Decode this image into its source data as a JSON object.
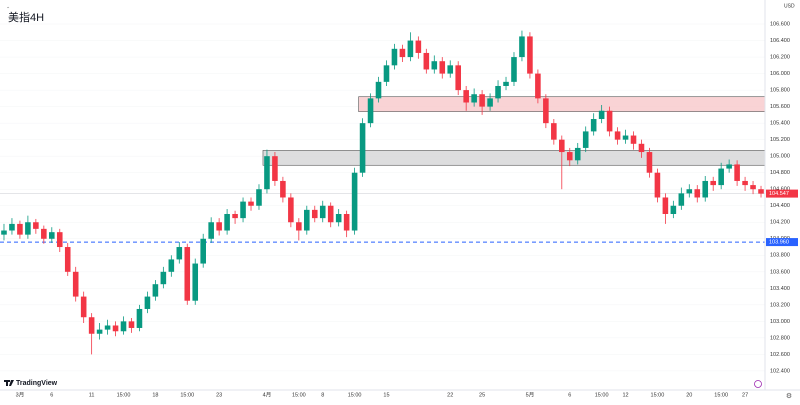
{
  "chart_data": {
    "type": "candlestick",
    "title": "美指4H",
    "currency": "USD",
    "brand": "TradingView",
    "up_color": "#089981",
    "down_color": "#f23645",
    "ylim": [
      102.29,
      106.77
    ],
    "yticks": [
      {
        "value": 102.4,
        "label": "102.400"
      },
      {
        "value": 102.6,
        "label": "102.600"
      },
      {
        "value": 102.8,
        "label": "102.800"
      },
      {
        "value": 103.0,
        "label": "103.000"
      },
      {
        "value": 103.2,
        "label": "103.200"
      },
      {
        "value": 103.4,
        "label": "103.400"
      },
      {
        "value": 103.6,
        "label": "103.600"
      },
      {
        "value": 103.8,
        "label": "103.800"
      },
      {
        "value": 104.0,
        "label": "104.000"
      },
      {
        "value": 104.2,
        "label": "104.200"
      },
      {
        "value": 104.4,
        "label": "104.400"
      },
      {
        "value": 104.6,
        "label": "104.600"
      },
      {
        "value": 104.8,
        "label": "104.800"
      },
      {
        "value": 105.0,
        "label": "105.000"
      },
      {
        "value": 105.2,
        "label": "105.200"
      },
      {
        "value": 105.4,
        "label": "105.400"
      },
      {
        "value": 105.6,
        "label": "105.600"
      },
      {
        "value": 105.8,
        "label": "105.800"
      },
      {
        "value": 106.0,
        "label": "106.000"
      },
      {
        "value": 106.2,
        "label": "106.200"
      },
      {
        "value": 106.4,
        "label": "106.400"
      },
      {
        "value": 106.6,
        "label": "106.600"
      }
    ],
    "categories": [
      null,
      null,
      "3月",
      null,
      null,
      null,
      "6",
      null,
      null,
      null,
      null,
      "11",
      null,
      null,
      null,
      "15:00",
      null,
      null,
      null,
      "18",
      null,
      null,
      null,
      "15:00",
      null,
      null,
      null,
      "23",
      null,
      null,
      null,
      null,
      null,
      "4月",
      null,
      null,
      null,
      "15:00",
      null,
      null,
      "8",
      null,
      null,
      null,
      "15:00",
      null,
      null,
      null,
      "15",
      null,
      null,
      null,
      null,
      null,
      null,
      null,
      "22",
      null,
      null,
      null,
      "25",
      null,
      null,
      null,
      null,
      null,
      "5月",
      null,
      null,
      null,
      null,
      "6",
      null,
      null,
      null,
      "15:00",
      null,
      null,
      "12",
      null,
      null,
      null,
      "15:00",
      null,
      null,
      null,
      "20",
      null,
      null,
      null,
      "15:00",
      null,
      null,
      "27",
      null,
      null
    ],
    "candles": [
      [
        104.05,
        104.18,
        103.98,
        104.1
      ],
      [
        104.1,
        104.25,
        104.05,
        104.18
      ],
      [
        104.18,
        104.22,
        104.0,
        104.05
      ],
      [
        104.05,
        104.28,
        104.0,
        104.2
      ],
      [
        104.2,
        104.24,
        104.06,
        104.12
      ],
      [
        104.12,
        104.16,
        103.94,
        104.0
      ],
      [
        104.0,
        104.14,
        103.95,
        104.08
      ],
      [
        104.08,
        104.12,
        103.84,
        103.9
      ],
      [
        103.9,
        103.95,
        103.55,
        103.6
      ],
      [
        103.6,
        103.66,
        103.24,
        103.3
      ],
      [
        103.3,
        103.36,
        102.98,
        103.05
      ],
      [
        103.05,
        103.1,
        102.6,
        102.85
      ],
      [
        102.85,
        102.98,
        102.78,
        102.9
      ],
      [
        102.9,
        103.02,
        102.84,
        102.95
      ],
      [
        102.95,
        103.0,
        102.82,
        102.88
      ],
      [
        102.88,
        103.06,
        102.84,
        103.0
      ],
      [
        103.0,
        103.04,
        102.86,
        102.92
      ],
      [
        102.92,
        103.2,
        102.88,
        103.15
      ],
      [
        103.15,
        103.36,
        103.1,
        103.3
      ],
      [
        103.3,
        103.5,
        103.25,
        103.45
      ],
      [
        103.45,
        103.66,
        103.4,
        103.6
      ],
      [
        103.6,
        103.8,
        103.54,
        103.75
      ],
      [
        103.75,
        103.96,
        103.7,
        103.9
      ],
      [
        103.9,
        103.94,
        103.2,
        103.25
      ],
      [
        103.25,
        103.76,
        103.2,
        103.7
      ],
      [
        103.7,
        104.06,
        103.65,
        104.0
      ],
      [
        104.0,
        104.26,
        103.95,
        104.2
      ],
      [
        104.2,
        104.25,
        104.04,
        104.1
      ],
      [
        104.1,
        104.36,
        104.05,
        104.3
      ],
      [
        104.3,
        104.34,
        104.18,
        104.25
      ],
      [
        104.25,
        104.5,
        104.2,
        104.45
      ],
      [
        104.45,
        104.5,
        104.34,
        104.4
      ],
      [
        104.4,
        104.66,
        104.35,
        104.6
      ],
      [
        104.6,
        105.08,
        104.55,
        105.0
      ],
      [
        105.0,
        105.05,
        104.64,
        104.7
      ],
      [
        104.7,
        104.75,
        104.44,
        104.5
      ],
      [
        104.5,
        104.55,
        104.14,
        104.2
      ],
      [
        104.2,
        104.25,
        103.98,
        104.1
      ],
      [
        104.1,
        104.4,
        104.05,
        104.35
      ],
      [
        104.35,
        104.4,
        104.2,
        104.25
      ],
      [
        104.25,
        104.46,
        104.2,
        104.4
      ],
      [
        104.4,
        104.44,
        104.14,
        104.2
      ],
      [
        104.2,
        104.36,
        104.15,
        104.3
      ],
      [
        104.3,
        104.34,
        104.02,
        104.1
      ],
      [
        104.1,
        104.86,
        104.05,
        104.8
      ],
      [
        104.8,
        105.46,
        104.75,
        105.4
      ],
      [
        105.4,
        105.76,
        105.35,
        105.7
      ],
      [
        105.7,
        105.96,
        105.65,
        105.9
      ],
      [
        105.9,
        106.16,
        105.85,
        106.1
      ],
      [
        106.1,
        106.36,
        106.05,
        106.3
      ],
      [
        106.3,
        106.35,
        106.14,
        106.2
      ],
      [
        106.2,
        106.5,
        106.15,
        106.4
      ],
      [
        106.4,
        106.45,
        106.18,
        106.25
      ],
      [
        106.25,
        106.3,
        106.0,
        106.05
      ],
      [
        106.05,
        106.22,
        106.0,
        106.15
      ],
      [
        106.15,
        106.2,
        105.94,
        106.0
      ],
      [
        106.0,
        106.16,
        105.95,
        106.1
      ],
      [
        106.1,
        106.15,
        105.74,
        105.8
      ],
      [
        105.8,
        105.85,
        105.55,
        105.65
      ],
      [
        105.65,
        105.82,
        105.6,
        105.75
      ],
      [
        105.75,
        105.8,
        105.5,
        105.6
      ],
      [
        105.6,
        105.76,
        105.55,
        105.7
      ],
      [
        105.7,
        105.92,
        105.65,
        105.85
      ],
      [
        105.85,
        105.96,
        105.8,
        105.9
      ],
      [
        105.9,
        106.26,
        105.85,
        106.2
      ],
      [
        106.2,
        106.52,
        106.15,
        106.45
      ],
      [
        106.45,
        106.5,
        105.94,
        106.0
      ],
      [
        106.0,
        106.05,
        105.64,
        105.7
      ],
      [
        105.7,
        105.75,
        105.34,
        105.4
      ],
      [
        105.4,
        105.45,
        105.14,
        105.2
      ],
      [
        105.2,
        105.25,
        104.6,
        105.05
      ],
      [
        105.05,
        105.1,
        104.88,
        104.95
      ],
      [
        104.95,
        105.16,
        104.9,
        105.1
      ],
      [
        105.1,
        105.36,
        105.05,
        105.3
      ],
      [
        105.3,
        105.52,
        105.25,
        105.45
      ],
      [
        105.45,
        105.62,
        105.4,
        105.55
      ],
      [
        105.55,
        105.6,
        105.24,
        105.3
      ],
      [
        105.3,
        105.35,
        105.14,
        105.2
      ],
      [
        105.2,
        105.32,
        105.15,
        105.25
      ],
      [
        105.25,
        105.3,
        105.08,
        105.15
      ],
      [
        105.15,
        105.2,
        104.98,
        105.05
      ],
      [
        105.05,
        105.1,
        104.74,
        104.8
      ],
      [
        104.8,
        104.85,
        104.44,
        104.5
      ],
      [
        104.5,
        104.55,
        104.18,
        104.3
      ],
      [
        104.3,
        104.46,
        104.25,
        104.4
      ],
      [
        104.4,
        104.62,
        104.35,
        104.55
      ],
      [
        104.55,
        104.66,
        104.5,
        104.6
      ],
      [
        104.6,
        104.65,
        104.44,
        104.5
      ],
      [
        104.5,
        104.76,
        104.45,
        104.7
      ],
      [
        104.7,
        104.75,
        104.58,
        104.65
      ],
      [
        104.65,
        104.92,
        104.6,
        104.85
      ],
      [
        104.85,
        104.96,
        104.8,
        104.9
      ],
      [
        104.9,
        104.95,
        104.64,
        104.7
      ],
      [
        104.7,
        104.75,
        104.58,
        104.65
      ],
      [
        104.65,
        104.7,
        104.54,
        104.6
      ],
      [
        104.6,
        104.64,
        104.5,
        104.547
      ]
    ],
    "last_label": "104.547",
    "zones": [
      {
        "low": 105.54,
        "high": 105.72,
        "start": 45,
        "color": "#f7c8cb"
      },
      {
        "low": 104.89,
        "high": 105.07,
        "start": 33,
        "color": "#d4d4d6"
      }
    ],
    "hline": {
      "value": 103.96,
      "label": "103.960",
      "color": "#2962ff"
    }
  }
}
